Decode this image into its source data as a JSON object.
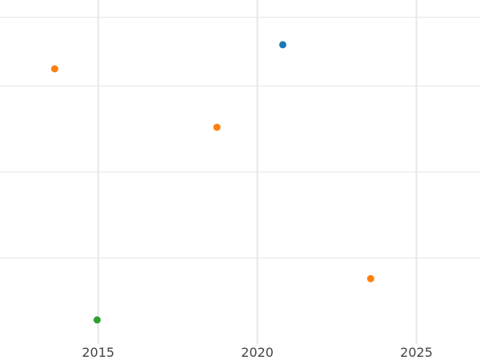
{
  "chart_data": {
    "type": "scatter",
    "title": "",
    "xlabel": "",
    "ylabel": "",
    "x_axis_type": "date",
    "xlim": [
      "2011-12-01",
      "2026-12-31"
    ],
    "ylim": [
      0,
      1
    ],
    "x_ticks": [
      "2015",
      "2020",
      "2025"
    ],
    "y_gridlines": [
      0.25,
      0.5,
      0.75,
      0.95
    ],
    "grid": true,
    "legend": "none",
    "points": [
      {
        "x": "2013-08-20",
        "y": 0.8,
        "color": "#ff7f0e"
      },
      {
        "x": "2018-09-25",
        "y": 0.63,
        "color": "#ff7f0e"
      },
      {
        "x": "2020-10-20",
        "y": 0.87,
        "color": "#1f77b4"
      },
      {
        "x": "2023-07-25",
        "y": 0.19,
        "color": "#ff7f0e"
      },
      {
        "x": "2014-12-20",
        "y": 0.07,
        "color": "#2ca02c"
      }
    ]
  }
}
